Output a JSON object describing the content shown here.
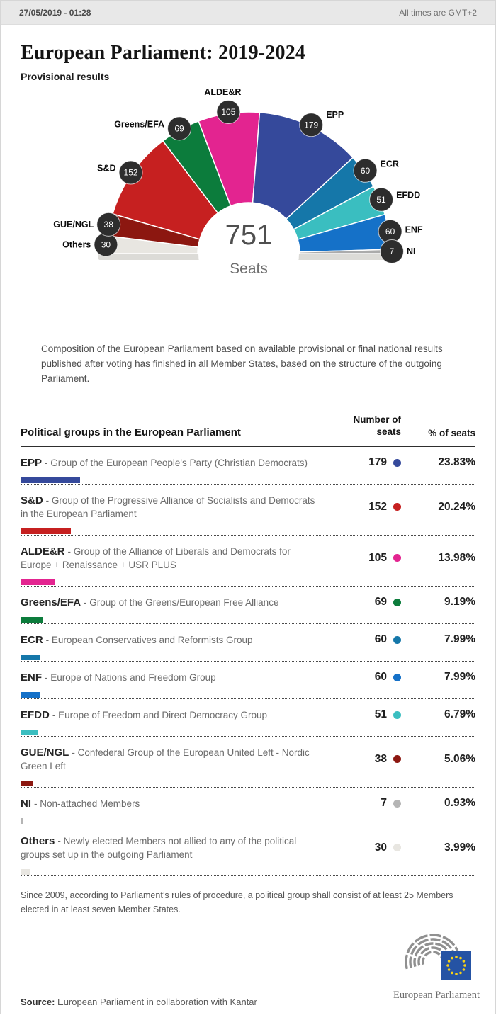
{
  "header": {
    "datetime": "27/05/2019 - 01:28",
    "timezone_note": "All times are GMT+2"
  },
  "title": "European Parliament: 2019-2024",
  "subtitle": "Provisional results",
  "chart_data": {
    "type": "hemicycle",
    "title": "European Parliament: 2019-2024 provisional results",
    "total": 751,
    "total_label": "Seats",
    "legend_position": "around-arc",
    "series": [
      {
        "name": "Others",
        "seats": 30,
        "pct": "3.99%",
        "color": "#e8e6e1"
      },
      {
        "name": "GUE/NGL",
        "seats": 38,
        "pct": "5.06%",
        "color": "#8c1710"
      },
      {
        "name": "S&D",
        "seats": 152,
        "pct": "20.24%",
        "color": "#c62020"
      },
      {
        "name": "Greens/EFA",
        "seats": 69,
        "pct": "9.19%",
        "color": "#0c7c3c"
      },
      {
        "name": "ALDE&R",
        "seats": 105,
        "pct": "13.98%",
        "color": "#e32490"
      },
      {
        "name": "EPP",
        "seats": 179,
        "pct": "23.83%",
        "color": "#35499b"
      },
      {
        "name": "ECR",
        "seats": 60,
        "pct": "7.99%",
        "color": "#1577a9"
      },
      {
        "name": "EFDD",
        "seats": 51,
        "pct": "6.79%",
        "color": "#3abec0"
      },
      {
        "name": "ENF",
        "seats": 60,
        "pct": "7.99%",
        "color": "#1571c8"
      },
      {
        "name": "NI",
        "seats": 7,
        "pct": "0.93%",
        "color": "#ababab"
      }
    ]
  },
  "description": "Composition of the European Parliament based on available provisional or final national results published after voting has finished in all Member States, based on the structure of the outgoing Parliament.",
  "table": {
    "headers": [
      "Political groups in the European Parliament",
      "Number of seats",
      "% of seats"
    ],
    "rows": [
      {
        "abbr": "EPP",
        "desc": "- Group of the European People's Party (Christian Democrats)",
        "seats": 179,
        "pct": "23.83%",
        "color": "#35499b"
      },
      {
        "abbr": "S&D",
        "desc": "- Group of the Progressive Alliance of Socialists and Democrats in the European Parliament",
        "seats": 152,
        "pct": "20.24%",
        "color": "#c62020"
      },
      {
        "abbr": "ALDE&R",
        "desc": "- Group of the Alliance of Liberals and Democrats for Europe + Renaissance + USR PLUS",
        "seats": 105,
        "pct": "13.98%",
        "color": "#e32490"
      },
      {
        "abbr": "Greens/EFA",
        "desc": "- Group of the Greens/European Free Alliance",
        "seats": 69,
        "pct": "9.19%",
        "color": "#0c7c3c"
      },
      {
        "abbr": "ECR",
        "desc": "- European Conservatives and Reformists Group",
        "seats": 60,
        "pct": "7.99%",
        "color": "#1577a9"
      },
      {
        "abbr": "ENF",
        "desc": "- Europe of Nations and Freedom Group",
        "seats": 60,
        "pct": "7.99%",
        "color": "#1571c8"
      },
      {
        "abbr": "EFDD",
        "desc": "- Europe of Freedom and Direct Democracy Group",
        "seats": 51,
        "pct": "6.79%",
        "color": "#3abec0"
      },
      {
        "abbr": "GUE/NGL",
        "desc": "- Confederal Group of the European United Left - Nordic Green Left",
        "seats": 38,
        "pct": "5.06%",
        "color": "#8c1710"
      },
      {
        "abbr": "NI",
        "desc": "- Non-attached Members",
        "seats": 7,
        "pct": "0.93%",
        "color": "#b5b5b5"
      },
      {
        "abbr": "Others",
        "desc": "- Newly elected Members not allied to any of the political groups set up in the outgoing Parliament",
        "seats": 30,
        "pct": "3.99%",
        "color": "#e8e6e1"
      }
    ]
  },
  "footnote": "Since 2009, according to Parliament’s rules of procedure, a political group shall consist of at least 25 Members elected in at least seven Member States.",
  "source": {
    "label": "Source:",
    "text": "European Parliament in collaboration with Kantar"
  },
  "logo": {
    "wordmark": "European Parliament",
    "flag_blue": "#2553a4",
    "star_yellow": "#f7d117",
    "arc_gray": "#909090"
  }
}
